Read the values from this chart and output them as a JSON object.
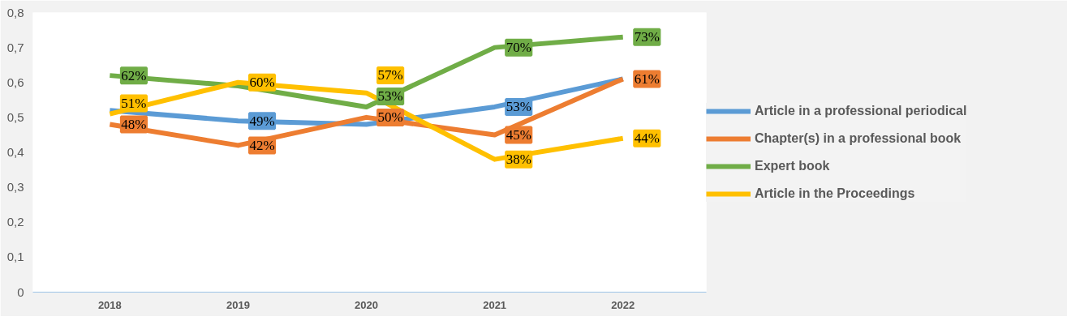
{
  "chart_data": {
    "type": "line",
    "categories": [
      "2018",
      "2019",
      "2020",
      "2021",
      "2022"
    ],
    "series": [
      {
        "name": "Article in a professional periodical",
        "color": "#5b9bd5",
        "values": [
          0.52,
          0.49,
          0.48,
          0.53,
          0.61
        ],
        "value_labels": [
          null,
          "49%",
          null,
          "53%",
          null
        ]
      },
      {
        "name": "Chapter(s) in a professional book",
        "color": "#ed7d31",
        "values": [
          0.48,
          0.42,
          0.5,
          0.45,
          0.61
        ],
        "value_labels": [
          "48%",
          "42%",
          "50%",
          "45%",
          "61%"
        ]
      },
      {
        "name": "Expert book",
        "color": "#70ad47",
        "values": [
          0.62,
          0.59,
          0.53,
          0.7,
          0.73
        ],
        "value_labels": [
          "62%",
          null,
          "53%",
          "70%",
          "73%"
        ]
      },
      {
        "name": "Article in the Proceedings",
        "color": "#ffc000",
        "values": [
          0.51,
          0.6,
          0.57,
          0.38,
          0.44
        ],
        "value_labels": [
          "51%",
          "60%",
          "57%",
          "38%",
          "44%"
        ]
      }
    ],
    "ylim": [
      0,
      0.8
    ],
    "yticks": [
      0,
      {
        "value": 0.1,
        "label": "0,1"
      },
      {
        "value": 0.2,
        "label": "0,2"
      },
      {
        "value": 0.3,
        "label": "0,3"
      },
      {
        "value": 0.4,
        "label": "0,4"
      },
      {
        "value": 0.5,
        "label": "0,5"
      },
      {
        "value": 0.6,
        "label": "0,6"
      },
      {
        "value": 0.7,
        "label": "0,7"
      },
      {
        "value": 0.8,
        "label": "0,8"
      }
    ],
    "grid": false,
    "legend": "right",
    "marker": "none",
    "line_style": "solid"
  }
}
